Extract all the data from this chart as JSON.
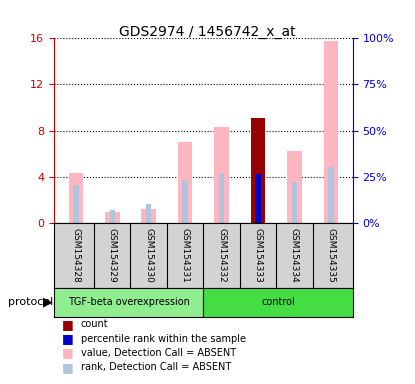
{
  "title": "GDS2974 / 1456742_x_at",
  "samples": [
    "GSM154328",
    "GSM154329",
    "GSM154330",
    "GSM154331",
    "GSM154332",
    "GSM154333",
    "GSM154334",
    "GSM154335"
  ],
  "group1_name": "TGF-beta overexpression",
  "group1_color": "#90EE90",
  "group1_count": 4,
  "group2_name": "control",
  "group2_color": "#44DD44",
  "group2_count": 4,
  "pink_bars": [
    4.3,
    0.9,
    1.2,
    7.0,
    8.3,
    9.1,
    6.2,
    15.8
  ],
  "blue_bars": [
    3.3,
    1.1,
    1.6,
    3.7,
    4.3,
    4.2,
    3.5,
    4.8
  ],
  "red_bar_index": 5,
  "red_bar_value": 9.1,
  "blue_highlight_index": 5,
  "ylim_left": [
    0,
    16
  ],
  "ylim_right": [
    0,
    100
  ],
  "yticks_left": [
    0,
    4,
    8,
    12,
    16
  ],
  "ytick_labels_left": [
    "0",
    "4",
    "8",
    "12",
    "16"
  ],
  "yticks_right": [
    0,
    25,
    50,
    75,
    100
  ],
  "ytick_labels_right": [
    "0%",
    "25%",
    "50%",
    "75%",
    "100%"
  ],
  "pink_color": "#FFB6C1",
  "light_blue_color": "#B0C4DE",
  "blue_color": "#0000CC",
  "red_color": "#990000",
  "bg_color_samples": "#D3D3D3",
  "legend_items": [
    {
      "label": "count",
      "color": "#990000"
    },
    {
      "label": "percentile rank within the sample",
      "color": "#0000CC"
    },
    {
      "label": "value, Detection Call = ABSENT",
      "color": "#FFB6C1"
    },
    {
      "label": "rank, Detection Call = ABSENT",
      "color": "#B0C4DE"
    }
  ],
  "protocol_label": "protocol",
  "left_axis_color": "#CC0000",
  "right_axis_color": "#0000CC"
}
